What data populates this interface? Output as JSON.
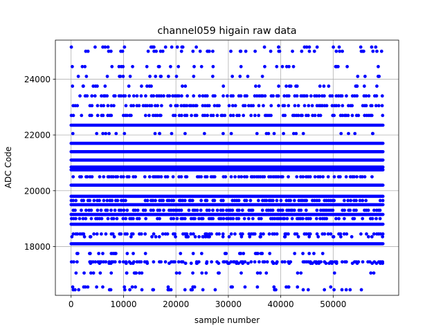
{
  "chart_data": {
    "type": "scatter",
    "title": "channel059 higain raw data",
    "xlabel": "sample number",
    "ylabel": "ADC Code",
    "xlim": [
      -3000,
      62500
    ],
    "ylim": [
      16250,
      25400
    ],
    "x_ticks": [
      0,
      10000,
      20000,
      30000,
      40000,
      50000
    ],
    "y_ticks": [
      18000,
      20000,
      22000,
      24000
    ],
    "x_tick_labels": [
      "0",
      "10000",
      "20000",
      "30000",
      "40000",
      "50000"
    ],
    "y_tick_labels": [
      "18000",
      "20000",
      "22000",
      "24000"
    ],
    "grid": true,
    "marker_color": "#0000ff",
    "series": [
      {
        "x_range": [
          0,
          59500
        ],
        "dense_levels": [
          18100,
          18800,
          19150,
          19500,
          19800,
          20200,
          20750,
          20850,
          21100,
          21400,
          21700,
          22350
        ],
        "medium_levels": [
          17450,
          18450,
          19000,
          19300,
          19650,
          20500,
          22700,
          23050,
          23400
        ],
        "sparse_levels": [
          16450,
          16550,
          17050,
          17400,
          17750,
          18350,
          22050,
          23750,
          24100,
          24450,
          25000,
          25150
        ]
      }
    ]
  }
}
